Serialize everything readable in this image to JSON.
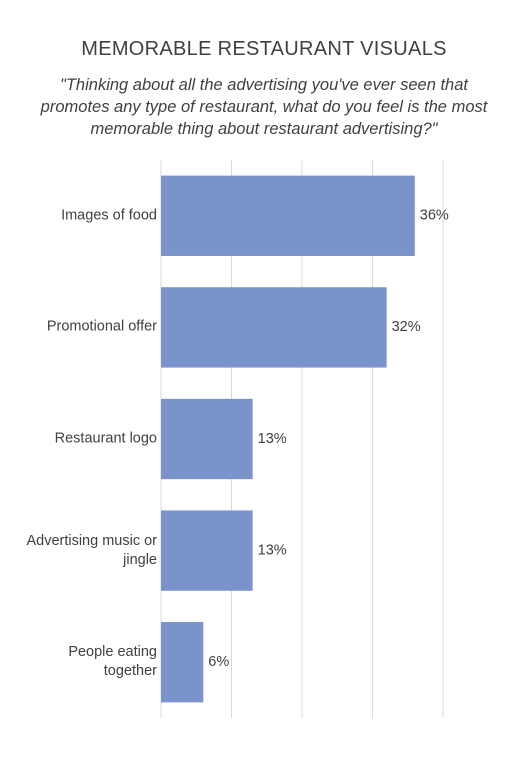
{
  "chart_data": {
    "type": "bar",
    "orientation": "horizontal",
    "title": "MEMORABLE RESTAURANT VISUALS",
    "subtitle": "\"Thinking about all the advertising you've ever seen that promotes any type of restaurant, what do you feel is the most memorable thing about restaurant advertising?\"",
    "categories": [
      "Images of food",
      "Promotional offer",
      "Restaurant logo",
      "Advertising music or jingle",
      "People eating together"
    ],
    "values": [
      36,
      32,
      13,
      13,
      6
    ],
    "value_labels": [
      "36%",
      "32%",
      "13%",
      "13%",
      "6%"
    ],
    "color": "#7b93cb",
    "xlim": [
      0,
      40
    ],
    "xticks": [
      0,
      10,
      20,
      30,
      40
    ],
    "grid": true
  }
}
